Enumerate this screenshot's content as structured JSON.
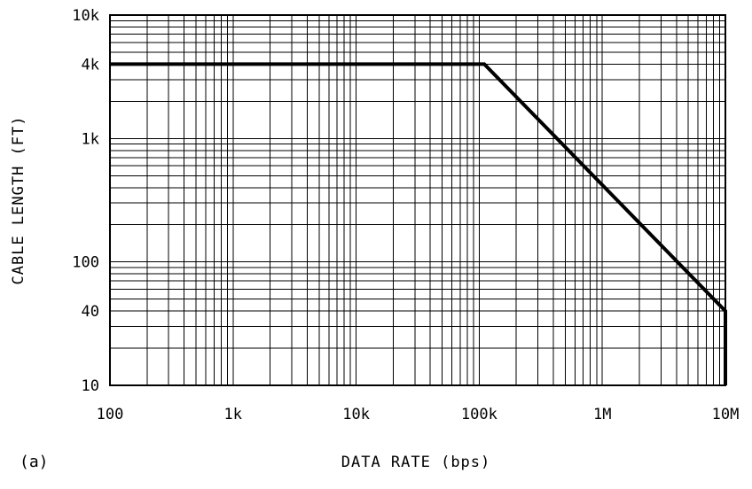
{
  "panel_label": "(a)",
  "chart_data": {
    "type": "line",
    "xlabel": "DATA RATE (bps)",
    "ylabel": "CABLE LENGTH (FT)",
    "x_scale": "log",
    "y_scale": "log",
    "xlim": [
      100,
      10000000
    ],
    "ylim": [
      10,
      10000
    ],
    "grid": true,
    "x_ticks": [
      {
        "value": 100,
        "label": "100"
      },
      {
        "value": 1000,
        "label": "1k"
      },
      {
        "value": 10000,
        "label": "10k"
      },
      {
        "value": 100000,
        "label": "100k"
      },
      {
        "value": 1000000,
        "label": "1M"
      },
      {
        "value": 10000000,
        "label": "10M"
      }
    ],
    "y_ticks": [
      {
        "value": 10,
        "label": "10"
      },
      {
        "value": 40,
        "label": "40"
      },
      {
        "value": 100,
        "label": "100"
      },
      {
        "value": 1000,
        "label": "1k"
      },
      {
        "value": 4000,
        "label": "4k"
      },
      {
        "value": 10000,
        "label": "10k"
      }
    ],
    "series": [
      {
        "color": "#000000",
        "points": [
          {
            "x": 100,
            "y": 4000
          },
          {
            "x": 110000,
            "y": 4000
          },
          {
            "x": 10000000,
            "y": 40
          },
          {
            "x": 10000000,
            "y": 10
          }
        ]
      }
    ]
  }
}
